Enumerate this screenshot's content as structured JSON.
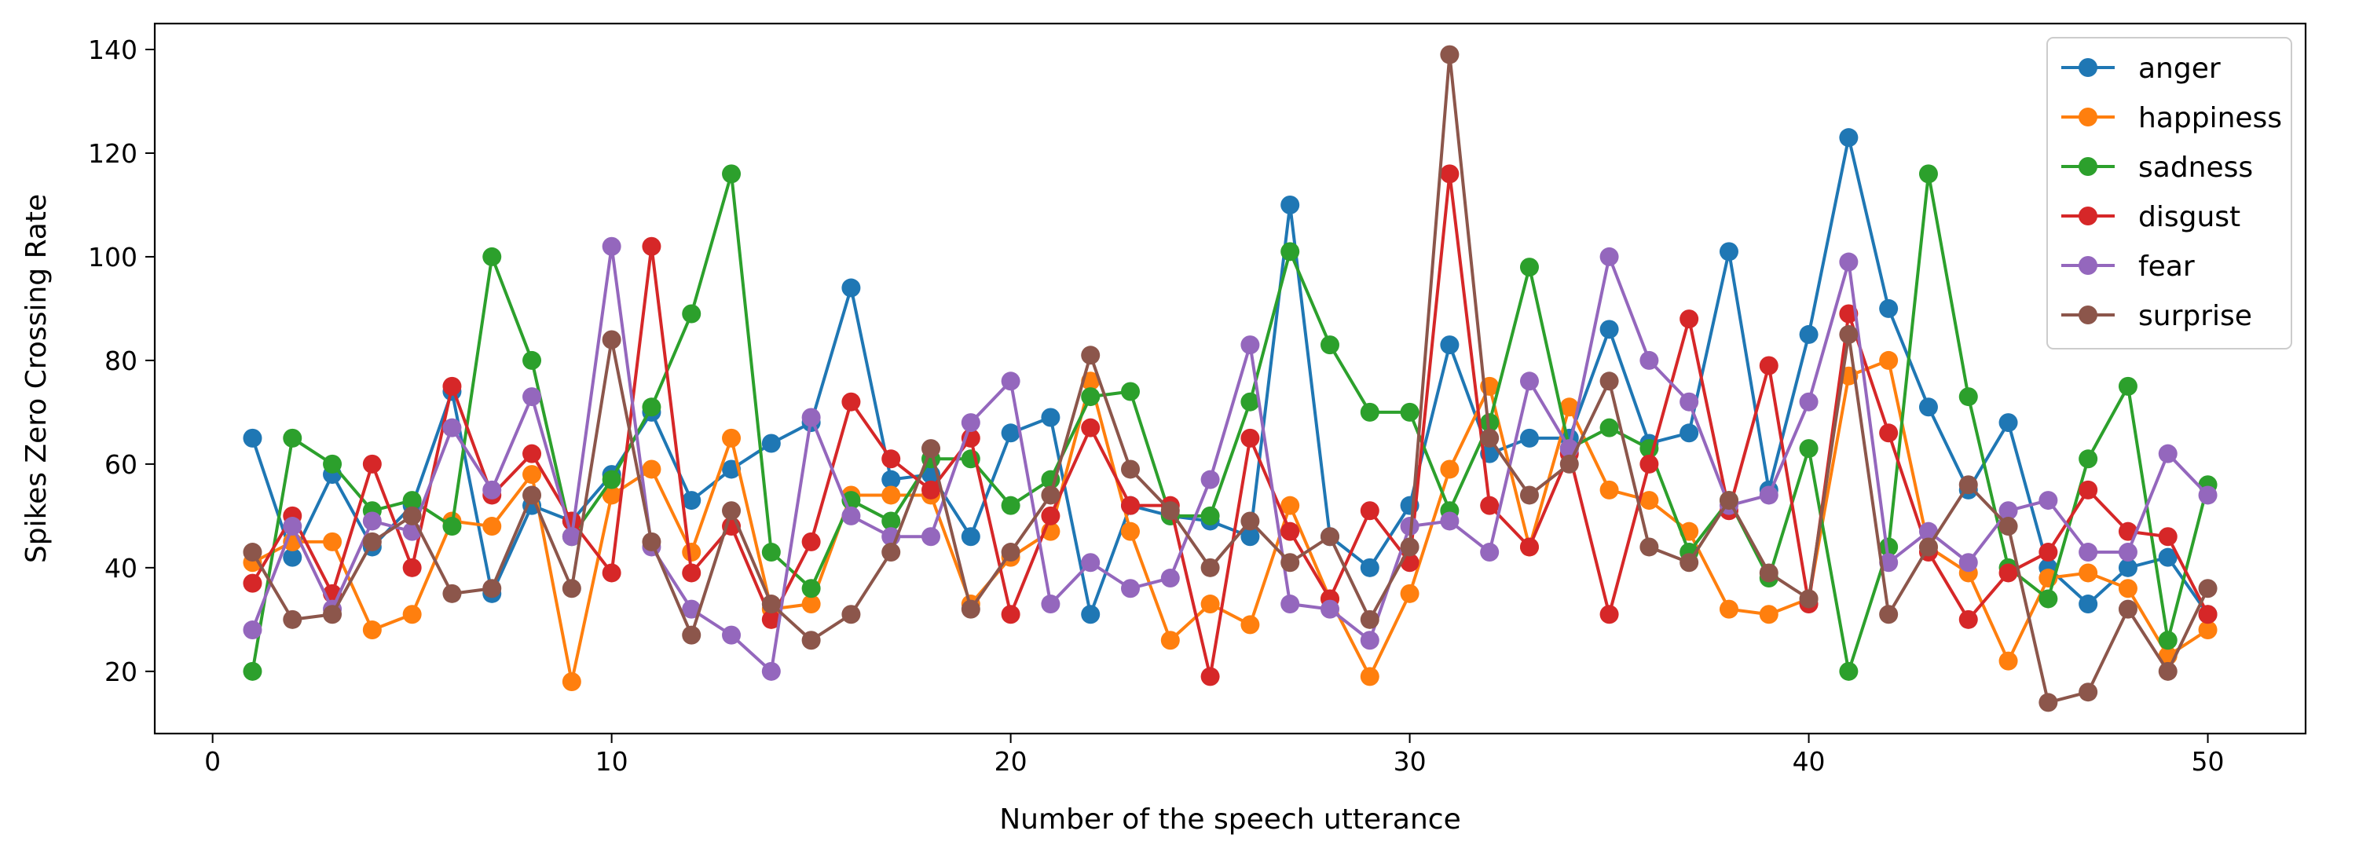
{
  "chart_data": {
    "type": "line",
    "title": "",
    "xlabel": "Number of the speech utterance",
    "ylabel": "Spikes Zero Crossing Rate",
    "xlim": [
      -1.45,
      52.45
    ],
    "ylim": [
      8,
      145
    ],
    "xticks": [
      0,
      10,
      20,
      30,
      40,
      50
    ],
    "yticks": [
      20,
      40,
      60,
      80,
      100,
      120,
      140
    ],
    "grid": false,
    "legend_position": "top-right",
    "x": [
      1,
      2,
      3,
      4,
      5,
      6,
      7,
      8,
      9,
      10,
      11,
      12,
      13,
      14,
      15,
      16,
      17,
      18,
      19,
      20,
      21,
      22,
      23,
      24,
      25,
      26,
      27,
      28,
      29,
      30,
      31,
      32,
      33,
      34,
      35,
      36,
      37,
      38,
      39,
      40,
      41,
      42,
      43,
      44,
      45,
      46,
      47,
      48,
      49,
      50
    ],
    "series": [
      {
        "name": "anger",
        "color": "#1f77b4",
        "values": [
          65,
          42,
          58,
          44,
          52,
          74,
          35,
          52,
          49,
          58,
          70,
          53,
          59,
          64,
          68,
          94,
          57,
          58,
          46,
          66,
          69,
          31,
          52,
          50,
          49,
          46,
          110,
          46,
          40,
          52,
          83,
          62,
          65,
          65,
          86,
          64,
          66,
          101,
          55,
          85,
          123,
          90,
          71,
          55,
          68,
          40,
          33,
          40,
          42,
          31
        ]
      },
      {
        "name": "happiness",
        "color": "#ff7f0e",
        "values": [
          41,
          45,
          45,
          28,
          31,
          49,
          48,
          58,
          18,
          54,
          59,
          43,
          65,
          32,
          33,
          54,
          54,
          54,
          33,
          42,
          47,
          76,
          47,
          26,
          33,
          29,
          52,
          34,
          19,
          35,
          59,
          75,
          44,
          71,
          55,
          53,
          47,
          32,
          31,
          34,
          77,
          80,
          44,
          39,
          22,
          38,
          39,
          36,
          23,
          28
        ]
      },
      {
        "name": "sadness",
        "color": "#2ca02c",
        "values": [
          20,
          65,
          60,
          51,
          53,
          48,
          100,
          80,
          46,
          57,
          71,
          89,
          116,
          43,
          36,
          53,
          49,
          61,
          61,
          52,
          57,
          73,
          74,
          50,
          50,
          72,
          101,
          83,
          70,
          70,
          51,
          68,
          98,
          63,
          67,
          63,
          43,
          53,
          38,
          63,
          20,
          44,
          116,
          73,
          40,
          34,
          61,
          75,
          26,
          56
        ]
      },
      {
        "name": "disgust",
        "color": "#d62728",
        "values": [
          37,
          50,
          35,
          60,
          40,
          75,
          54,
          62,
          49,
          39,
          102,
          39,
          48,
          30,
          45,
          72,
          61,
          55,
          65,
          31,
          50,
          67,
          52,
          52,
          19,
          65,
          47,
          34,
          51,
          41,
          116,
          52,
          44,
          62,
          31,
          60,
          88,
          51,
          79,
          33,
          89,
          66,
          43,
          30,
          39,
          43,
          55,
          47,
          46,
          31
        ]
      },
      {
        "name": "fear",
        "color": "#9467bd",
        "values": [
          28,
          48,
          32,
          49,
          47,
          67,
          55,
          73,
          46,
          102,
          44,
          32,
          27,
          20,
          69,
          50,
          46,
          46,
          68,
          76,
          33,
          41,
          36,
          38,
          57,
          83,
          33,
          32,
          26,
          48,
          49,
          43,
          76,
          63,
          100,
          80,
          72,
          52,
          54,
          72,
          99,
          41,
          47,
          41,
          51,
          53,
          43,
          43,
          62,
          54
        ]
      },
      {
        "name": "surprise",
        "color": "#8c564b",
        "values": [
          43,
          30,
          31,
          45,
          50,
          35,
          36,
          54,
          36,
          84,
          45,
          27,
          51,
          33,
          26,
          31,
          43,
          63,
          32,
          43,
          54,
          81,
          59,
          51,
          40,
          49,
          41,
          46,
          30,
          44,
          139,
          65,
          54,
          60,
          76,
          44,
          41,
          53,
          39,
          34,
          85,
          31,
          44,
          56,
          48,
          14,
          16,
          32,
          20,
          36
        ]
      }
    ]
  }
}
